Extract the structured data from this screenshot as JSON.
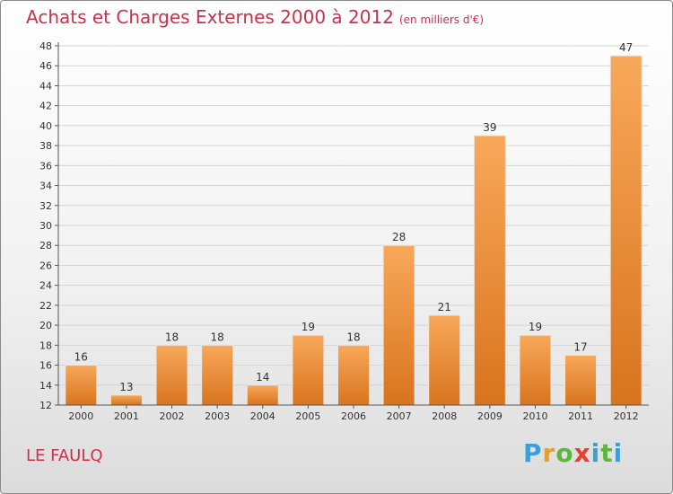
{
  "chart_data": {
    "type": "bar",
    "title": "Achats et Charges Externes 2000 à 2012",
    "subtitle": "(en milliers d'€)",
    "categories": [
      "2000",
      "2001",
      "2002",
      "2003",
      "2004",
      "2005",
      "2006",
      "2007",
      "2008",
      "2009",
      "2010",
      "2011",
      "2012"
    ],
    "values": [
      16,
      13,
      18,
      18,
      14,
      19,
      18,
      28,
      21,
      39,
      19,
      17,
      47
    ],
    "ylim": [
      12,
      48
    ],
    "yticks": [
      12,
      14,
      16,
      18,
      20,
      22,
      24,
      26,
      28,
      30,
      32,
      34,
      36,
      38,
      40,
      42,
      44,
      46,
      48
    ],
    "grid": true,
    "bar_color_top": "#f8a85a",
    "bar_color_bottom": "#d8741e"
  },
  "location": "LE FAULQ",
  "logo": {
    "text": "Proxiti",
    "letters": [
      "P",
      "r",
      "o",
      "x",
      "i",
      "t",
      "i"
    ],
    "colors": [
      "#3aa0dc",
      "#e8a020",
      "#5bb83a",
      "#e8402a",
      "#3aa0dc",
      "#5bb83a",
      "#3aa0dc"
    ]
  },
  "colors": {
    "title": "#c8324a",
    "grid": "#d4d4d4",
    "axis": "#555555"
  }
}
